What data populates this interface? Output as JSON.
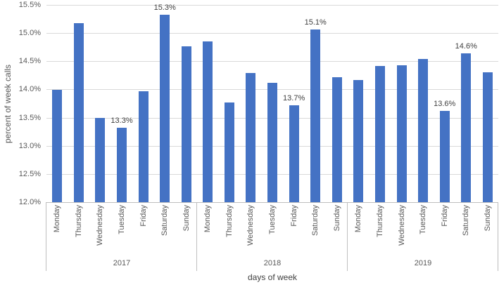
{
  "chart_data": {
    "type": "bar",
    "title": "",
    "xlabel": "days of week",
    "ylabel": "percent of week calls",
    "ylim": [
      12.0,
      15.5
    ],
    "ytick_labels": [
      "15.5%",
      "15.0%",
      "14.5%",
      "14.0%",
      "13.5%",
      "13.0%",
      "12.5%",
      "12.0%"
    ],
    "grid": true,
    "legend": false,
    "bar_color": "#4472C4",
    "gridline_color": "#D9D9D9",
    "axis_line_color": "#BFBFBF",
    "day_order": [
      "Monday",
      "Thursday",
      "Wednesday",
      "Tuesday",
      "Friday",
      "Saturday",
      "Sunday"
    ],
    "groups": [
      {
        "label": "2017",
        "values": [
          13.99,
          15.18,
          13.5,
          13.32,
          13.97,
          15.33,
          14.77
        ],
        "data_labels": [
          "",
          "",
          "",
          "13.3%",
          "",
          "15.3%",
          ""
        ]
      },
      {
        "label": "2018",
        "values": [
          14.85,
          13.77,
          14.29,
          14.12,
          13.72,
          15.07,
          14.22
        ],
        "data_labels": [
          "",
          "",
          "",
          "",
          "13.7%",
          "15.1%",
          ""
        ]
      },
      {
        "label": "2019",
        "values": [
          14.17,
          14.42,
          14.43,
          14.54,
          13.62,
          14.64,
          14.3
        ],
        "data_labels": [
          "",
          "",
          "",
          "",
          "13.6%",
          "14.6%",
          ""
        ]
      }
    ]
  }
}
